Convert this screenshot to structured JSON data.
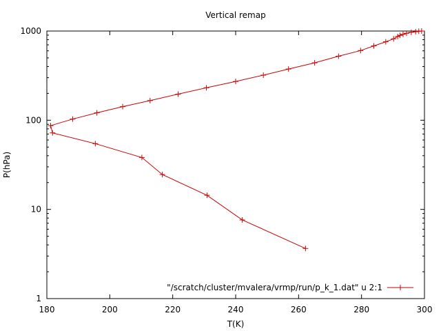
{
  "chart_data": {
    "type": "line",
    "title": "Vertical remap",
    "xlabel": "T(K)",
    "ylabel": "P(hPa)",
    "xlim": [
      180,
      300
    ],
    "ylim": [
      1,
      1000
    ],
    "y_scale": "log",
    "grid": false,
    "legend": "bottom-right",
    "x_ticks": [
      "180",
      "200",
      "220",
      "240",
      "260",
      "280",
      "300"
    ],
    "y_ticks": [
      "1",
      "10",
      "100",
      "1000"
    ],
    "series": [
      {
        "name": "\"/scratch/cluster/mvalera/vrmp/run/p_k_1.dat\" u 2:1",
        "color": "#cc0000",
        "marker": "plus",
        "points": [
          [
            262.2,
            3.65
          ],
          [
            242.1,
            7.62
          ],
          [
            230.9,
            14.4
          ],
          [
            216.7,
            24.6
          ],
          [
            210.2,
            38.2
          ],
          [
            195.4,
            54.6
          ],
          [
            181.8,
            72.1
          ],
          [
            181.2,
            86.9
          ],
          [
            188.2,
            103
          ],
          [
            195.9,
            121
          ],
          [
            204.1,
            142
          ],
          [
            212.8,
            166
          ],
          [
            221.7,
            196
          ],
          [
            230.7,
            231
          ],
          [
            240.0,
            272
          ],
          [
            248.8,
            320
          ],
          [
            256.8,
            375
          ],
          [
            265.1,
            440
          ],
          [
            272.7,
            522
          ],
          [
            279.7,
            604
          ],
          [
            283.9,
            681
          ],
          [
            287.7,
            757
          ],
          [
            290.2,
            818
          ],
          [
            291.5,
            869
          ],
          [
            292.2,
            894
          ],
          [
            293.2,
            919
          ],
          [
            294.3,
            944
          ],
          [
            295.8,
            968
          ],
          [
            297.2,
            983
          ],
          [
            298.2,
            995
          ],
          [
            299.1,
            1000
          ]
        ]
      }
    ]
  }
}
